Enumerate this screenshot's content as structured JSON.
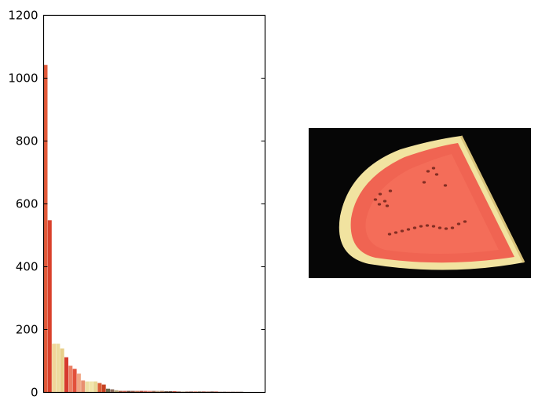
{
  "chart_data": {
    "type": "bar",
    "title": "",
    "xlabel": "",
    "ylabel": "",
    "ylim": [
      0,
      1200
    ],
    "yticks": [
      0,
      200,
      400,
      600,
      800,
      1000,
      1200
    ],
    "ytick_labels": [
      "0",
      "200",
      "400",
      "600",
      "800",
      "1000",
      "1200"
    ],
    "grid": false,
    "values": [
      1042,
      548,
      155,
      155,
      140,
      112,
      85,
      75,
      60,
      38,
      35,
      35,
      35,
      30,
      25,
      12,
      10,
      7,
      5,
      5,
      5,
      5,
      5,
      5,
      5,
      5,
      5,
      5,
      5,
      4,
      4,
      4,
      3,
      3,
      3,
      3,
      3,
      3,
      3,
      3,
      3,
      3,
      2,
      2,
      2,
      2,
      2,
      2
    ],
    "colors": [
      "#e25a3a",
      "#d9402b",
      "#f1d59a",
      "#eddb9e",
      "#e8cf8a",
      "#d63a2e",
      "#eb7f63",
      "#e2503a",
      "#f0a583",
      "#e88f70",
      "#eddfa4",
      "#f1e5aa",
      "#e8d796",
      "#da5c36",
      "#c64222",
      "#6a6a4c",
      "#8a6a5a",
      "#b0a070",
      "#a05035",
      "#c05040",
      "#704030",
      "#905040",
      "#c07050",
      "#b04030",
      "#d06050",
      "#e08070",
      "#a06a50",
      "#c0a080",
      "#b08060",
      "#705040",
      "#604030",
      "#c04030",
      "#805040",
      "#c0b090",
      "#a07060",
      "#905545",
      "#d06045",
      "#806040",
      "#a04a3a",
      "#b07060",
      "#704535",
      "#c05545",
      "#906050",
      "#603a30",
      "#b06050",
      "#805545",
      "#a05a4a",
      "#704a3a"
    ]
  },
  "photo": {
    "subject": "watermelon slice",
    "background": "#060606",
    "rind": "#f1e3a0",
    "flesh": "#f06452",
    "flesh_inner": "#f5705c",
    "seed": "#5e1a12"
  }
}
